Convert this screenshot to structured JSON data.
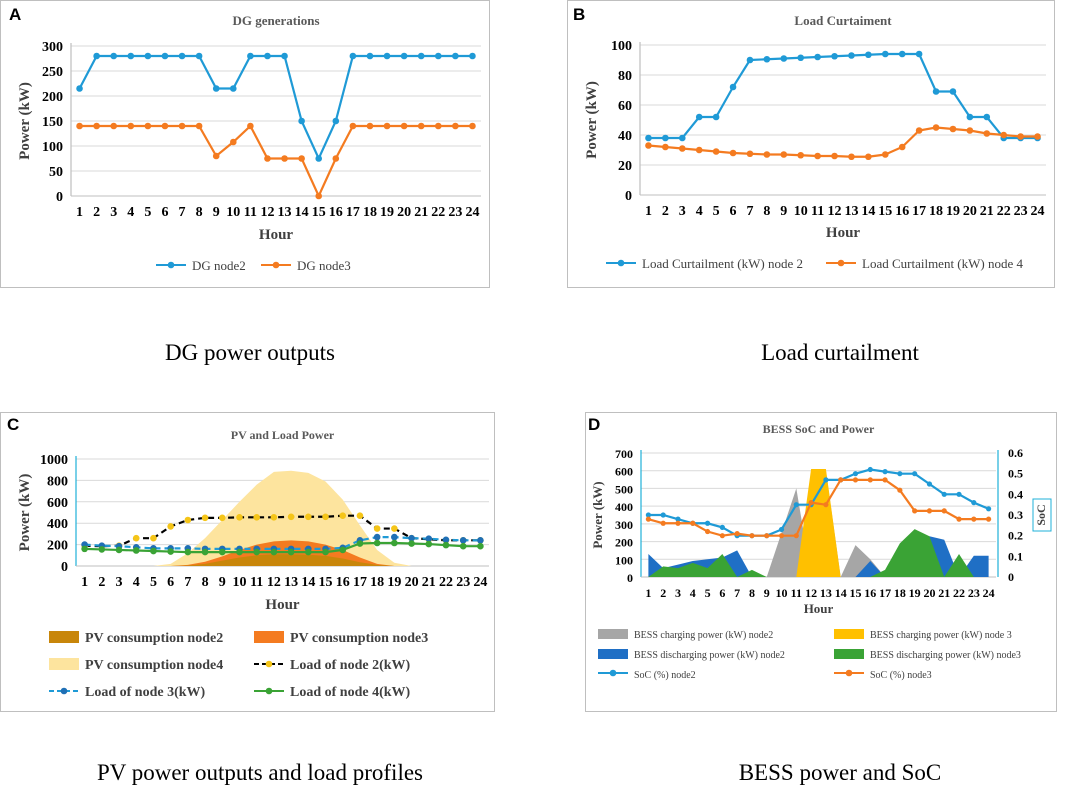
{
  "panels": {
    "a": {
      "label": "A",
      "caption": "DG power outputs"
    },
    "b": {
      "label": "B",
      "caption": "Load curtailment"
    },
    "c": {
      "label": "C",
      "caption": "PV power outputs and load profiles"
    },
    "d": {
      "label": "D",
      "caption": "BESS power and SoC"
    }
  },
  "chart_data": [
    {
      "id": "a",
      "type": "line",
      "title": "DG generations",
      "xlabel": "Hour",
      "ylabel": "Power (kW)",
      "ylim": [
        0,
        300
      ],
      "yticks": [
        0,
        50,
        100,
        150,
        200,
        250,
        300
      ],
      "categories": [
        "1",
        "2",
        "3",
        "4",
        "5",
        "6",
        "7",
        "8",
        "9",
        "10",
        "11",
        "12",
        "13",
        "14",
        "15",
        "16",
        "17",
        "18",
        "19",
        "20",
        "21",
        "22",
        "23",
        "24"
      ],
      "series": [
        {
          "name": "DG node2",
          "color": "#1f9ad6",
          "values": [
            215,
            280,
            280,
            280,
            280,
            280,
            280,
            280,
            215,
            215,
            280,
            280,
            280,
            150,
            75,
            150,
            280,
            280,
            280,
            280,
            280,
            280,
            280,
            280
          ]
        },
        {
          "name": "DG node3",
          "color": "#f47b20",
          "values": [
            140,
            140,
            140,
            140,
            140,
            140,
            140,
            140,
            80,
            108,
            140,
            75,
            75,
            75,
            0,
            75,
            140,
            140,
            140,
            140,
            140,
            140,
            140,
            140
          ]
        }
      ]
    },
    {
      "id": "b",
      "type": "line",
      "title": "Load Curtaiment",
      "xlabel": "Hour",
      "ylabel": "Power (kW)",
      "ylim": [
        0,
        100
      ],
      "yticks": [
        0,
        20,
        40,
        60,
        80,
        100
      ],
      "categories": [
        "1",
        "2",
        "3",
        "4",
        "5",
        "6",
        "7",
        "8",
        "9",
        "10",
        "11",
        "12",
        "13",
        "14",
        "15",
        "16",
        "17",
        "18",
        "19",
        "20",
        "21",
        "22",
        "23",
        "24"
      ],
      "series": [
        {
          "name": "Load Curtailment (kW) node 2",
          "color": "#1f9ad6",
          "values": [
            38,
            38,
            38,
            52,
            52,
            72,
            90,
            90.5,
            91,
            91.5,
            92,
            92.5,
            93,
            93.5,
            94,
            94,
            94,
            69,
            69,
            52,
            52,
            38,
            38,
            38
          ]
        },
        {
          "name": "Load Curtailment (kW) node 4",
          "color": "#f47b20",
          "values": [
            33,
            32,
            31,
            30,
            29,
            28,
            27.5,
            27,
            27,
            26.5,
            26,
            26,
            25.5,
            25.5,
            27,
            32,
            43,
            45,
            44,
            43,
            41,
            40,
            39,
            39
          ]
        }
      ]
    },
    {
      "id": "c",
      "type": "area",
      "title": "PV and Load Power",
      "xlabel": "Hour",
      "ylabel": "Power (kW)",
      "ylim": [
        0,
        1000
      ],
      "yticks": [
        0,
        200,
        400,
        600,
        800,
        1000
      ],
      "categories": [
        "1",
        "2",
        "3",
        "4",
        "5",
        "6",
        "7",
        "8",
        "9",
        "10",
        "11",
        "12",
        "13",
        "14",
        "15",
        "16",
        "17",
        "18",
        "19",
        "20",
        "21",
        "22",
        "23",
        "24"
      ],
      "areas": [
        {
          "name": "PV consumption node4",
          "color": "#fde49e",
          "values": [
            0,
            0,
            0,
            0,
            0,
            20,
            120,
            260,
            430,
            600,
            760,
            880,
            890,
            870,
            790,
            620,
            380,
            150,
            30,
            0,
            0,
            0,
            0,
            0
          ]
        },
        {
          "name": "PV consumption node3",
          "color": "#f47b20",
          "values": [
            0,
            0,
            0,
            0,
            0,
            0,
            10,
            40,
            90,
            150,
            200,
            230,
            240,
            230,
            200,
            150,
            80,
            20,
            0,
            0,
            0,
            0,
            0,
            0
          ]
        },
        {
          "name": "PV consumption node2",
          "color": "#c8860a",
          "values": [
            0,
            0,
            0,
            0,
            0,
            0,
            5,
            20,
            50,
            80,
            100,
            110,
            110,
            105,
            95,
            70,
            35,
            10,
            0,
            0,
            0,
            0,
            0,
            0
          ]
        }
      ],
      "lines": [
        {
          "name": "Load of node 2(kW)",
          "color": "#000000",
          "marker": "#f5c518",
          "dash": true,
          "values": [
            190,
            185,
            190,
            260,
            260,
            370,
            430,
            450,
            450,
            455,
            455,
            455,
            460,
            460,
            460,
            470,
            470,
            350,
            350,
            260,
            250,
            240,
            240,
            240
          ]
        },
        {
          "name": "Load of node 3(kW)",
          "color": "#1f9ad6",
          "marker": "#1f6fb5",
          "dash": true,
          "values": [
            200,
            190,
            185,
            175,
            165,
            165,
            165,
            160,
            160,
            160,
            160,
            160,
            160,
            160,
            160,
            170,
            240,
            270,
            270,
            260,
            255,
            245,
            240,
            240
          ]
        },
        {
          "name": "Load of node 4(kW)",
          "color": "#3aa335",
          "marker": "#3aa335",
          "dash": false,
          "values": [
            160,
            155,
            150,
            145,
            140,
            135,
            130,
            130,
            130,
            130,
            130,
            130,
            130,
            130,
            130,
            150,
            210,
            215,
            215,
            210,
            205,
            195,
            185,
            185
          ]
        }
      ]
    },
    {
      "id": "d",
      "type": "area",
      "title": "BESS SoC and Power",
      "xlabel": "Hour",
      "ylabel": "Power (kW)",
      "y2label": "SoC",
      "ylim": [
        0,
        700
      ],
      "yticks": [
        0,
        100,
        200,
        300,
        400,
        500,
        600,
        700
      ],
      "y2lim": [
        0,
        0.6
      ],
      "y2ticks": [
        "0",
        "0.1",
        "0.2",
        "0.3",
        "0.4",
        "0.5",
        "0.6"
      ],
      "categories": [
        "1",
        "2",
        "3",
        "4",
        "5",
        "6",
        "7",
        "8",
        "9",
        "10",
        "11",
        "12",
        "13",
        "14",
        "15",
        "16",
        "17",
        "18",
        "19",
        "20",
        "21",
        "22",
        "23",
        "24"
      ],
      "areas": [
        {
          "name": "BESS charging power (kW) node2",
          "color": "#a6a6a6",
          "values": [
            0,
            0,
            0,
            0,
            0,
            0,
            0,
            0,
            0,
            250,
            500,
            0,
            600,
            0,
            180,
            100,
            0,
            0,
            0,
            0,
            0,
            0,
            0,
            0
          ]
        },
        {
          "name": "BESS charging power (kW) node 3",
          "color": "#ffc000",
          "values": [
            0,
            0,
            0,
            0,
            0,
            0,
            0,
            0,
            0,
            0,
            0,
            610,
            610,
            0,
            0,
            0,
            0,
            0,
            0,
            0,
            0,
            0,
            0,
            0
          ]
        },
        {
          "name": "BESS discharging power (kW) node2",
          "color": "#1f6fc5",
          "values": [
            130,
            50,
            70,
            90,
            100,
            110,
            150,
            0,
            0,
            0,
            0,
            0,
            0,
            0,
            0,
            90,
            0,
            0,
            0,
            230,
            210,
            0,
            120,
            120
          ]
        },
        {
          "name": "BESS discharging power (kW) node3",
          "color": "#3aa335",
          "values": [
            0,
            60,
            50,
            80,
            50,
            130,
            0,
            40,
            0,
            0,
            0,
            0,
            0,
            0,
            0,
            0,
            40,
            190,
            270,
            230,
            0,
            130,
            0,
            0
          ]
        }
      ],
      "lines": [
        {
          "name": "SoC (%) node2",
          "color": "#1f9ad6",
          "marker": "#1f9ad6",
          "dash": false,
          "axis": "y2",
          "values": [
            0.3,
            0.3,
            0.28,
            0.26,
            0.26,
            0.24,
            0.2,
            0.2,
            0.2,
            0.23,
            0.35,
            0.35,
            0.47,
            0.47,
            0.5,
            0.52,
            0.51,
            0.5,
            0.5,
            0.45,
            0.4,
            0.4,
            0.36,
            0.33
          ]
        },
        {
          "name": "SoC (%) node3",
          "color": "#f47b20",
          "marker": "#f47b20",
          "dash": false,
          "axis": "y2",
          "values": [
            0.28,
            0.26,
            0.26,
            0.26,
            0.22,
            0.2,
            0.21,
            0.2,
            0.2,
            0.2,
            0.2,
            0.36,
            0.35,
            0.47,
            0.47,
            0.47,
            0.47,
            0.42,
            0.32,
            0.32,
            0.32,
            0.28,
            0.28,
            0.28
          ]
        }
      ]
    }
  ]
}
